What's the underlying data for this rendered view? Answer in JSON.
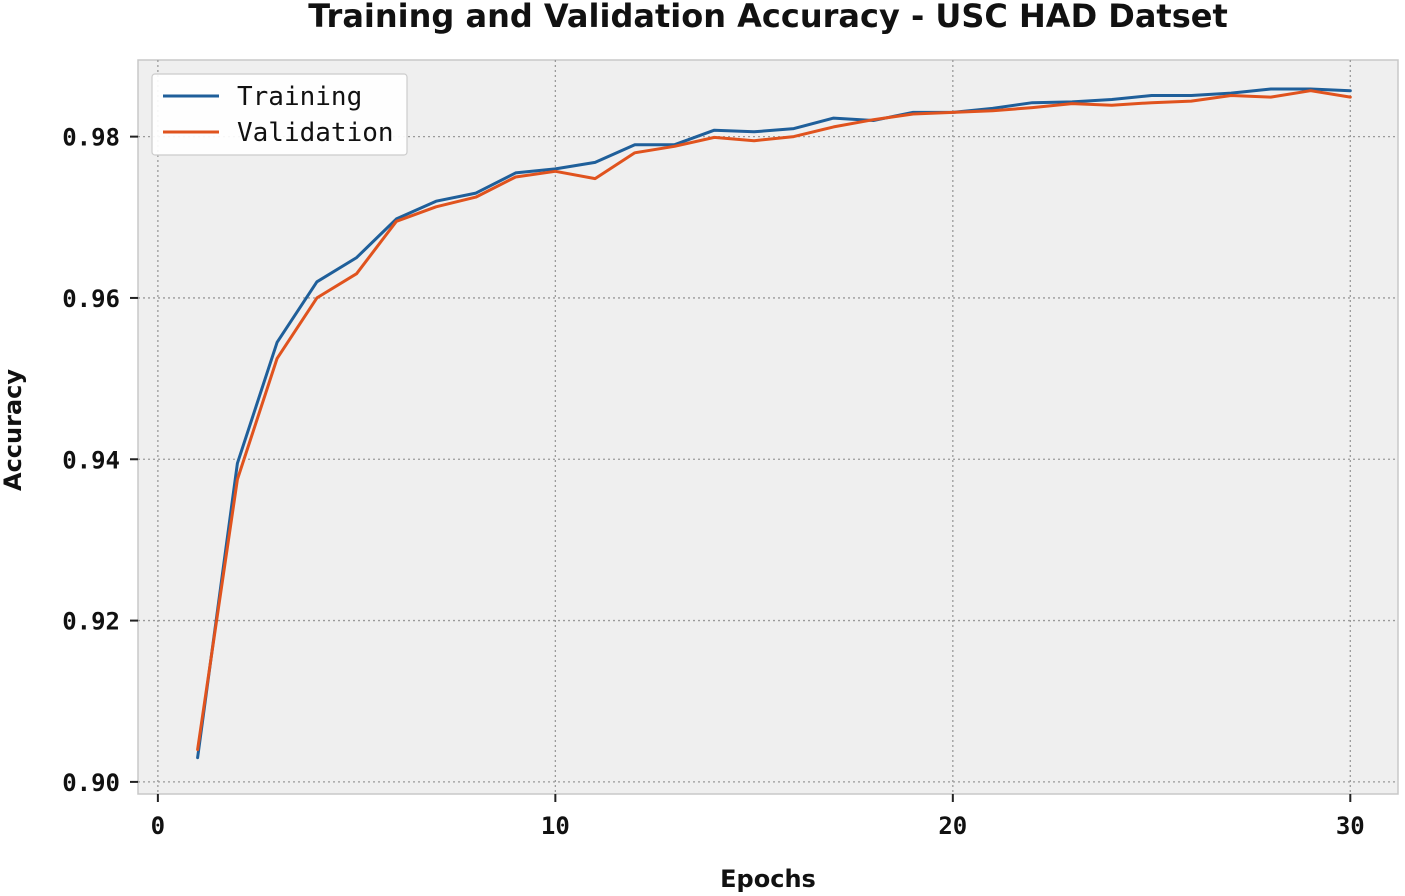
{
  "chart_data": {
    "type": "line",
    "title": "Training and Validation Accuracy - USC HAD Datset",
    "xlabel": "Epochs",
    "ylabel": "Accuracy",
    "xlim": [
      -0.5,
      31.2
    ],
    "ylim": [
      0.8985,
      0.9895
    ],
    "xticks": [
      0,
      10,
      20,
      30
    ],
    "xtick_labels": [
      "0",
      "10",
      "20",
      "30"
    ],
    "yticks": [
      0.9,
      0.92,
      0.94,
      0.96,
      0.98
    ],
    "ytick_labels": [
      "0.90",
      "0.92",
      "0.94",
      "0.96",
      "0.98"
    ],
    "grid": true,
    "legend_position": "top-left",
    "x": [
      1,
      2,
      3,
      4,
      5,
      6,
      7,
      8,
      9,
      10,
      11,
      12,
      13,
      14,
      15,
      16,
      17,
      18,
      19,
      20,
      21,
      22,
      23,
      24,
      25,
      26,
      27,
      28,
      29,
      30
    ],
    "series": [
      {
        "name": "Training",
        "color": "#1f5f9a",
        "values": [
          0.903,
          0.9395,
          0.9545,
          0.962,
          0.965,
          0.9698,
          0.972,
          0.973,
          0.9755,
          0.976,
          0.9768,
          0.979,
          0.979,
          0.9808,
          0.9806,
          0.981,
          0.9823,
          0.982,
          0.983,
          0.983,
          0.9835,
          0.9842,
          0.9843,
          0.9846,
          0.9851,
          0.9851,
          0.9854,
          0.9859,
          0.9859,
          0.9857
        ]
      },
      {
        "name": "Validation",
        "color": "#e0531e",
        "values": [
          0.904,
          0.9375,
          0.9525,
          0.96,
          0.963,
          0.9695,
          0.9713,
          0.9725,
          0.975,
          0.9757,
          0.9748,
          0.978,
          0.9788,
          0.9799,
          0.9795,
          0.98,
          0.9812,
          0.9821,
          0.9828,
          0.983,
          0.9832,
          0.9836,
          0.9841,
          0.9839,
          0.9842,
          0.9844,
          0.9851,
          0.9849,
          0.9857,
          0.9849
        ]
      }
    ]
  }
}
